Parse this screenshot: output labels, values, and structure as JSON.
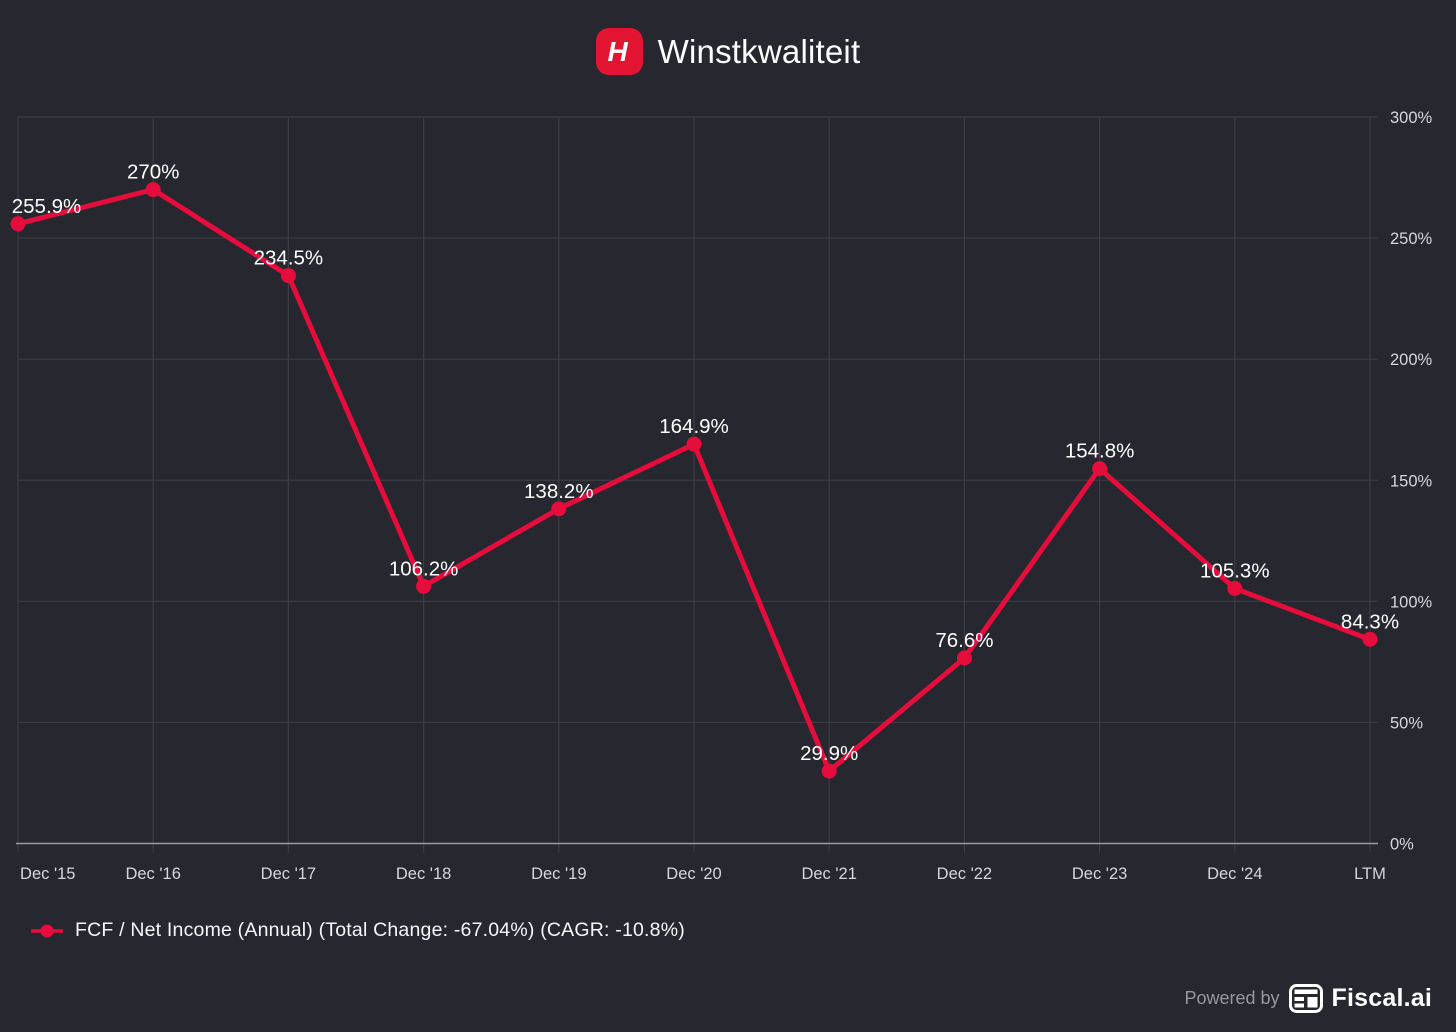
{
  "header": {
    "title": "Winstkwaliteit",
    "logo_letter": "H"
  },
  "chart_data": {
    "type": "line",
    "title": "Winstkwaliteit",
    "categories": [
      "Dec '15",
      "Dec '16",
      "Dec '17",
      "Dec '18",
      "Dec '19",
      "Dec '20",
      "Dec '21",
      "Dec '22",
      "Dec '23",
      "Dec '24",
      "LTM"
    ],
    "series": [
      {
        "name": "FCF / Net Income (Annual)",
        "values": [
          255.9,
          270,
          234.5,
          106.2,
          138.2,
          164.9,
          29.9,
          76.6,
          154.8,
          105.3,
          84.3
        ],
        "color": "#e60c3c"
      }
    ],
    "point_labels": [
      "255.9%",
      "270%",
      "234.5%",
      "106.2%",
      "138.2%",
      "164.9%",
      "29.9%",
      "76.6%",
      "154.8%",
      "105.3%",
      "84.3%"
    ],
    "total_change": "-67.04%",
    "cagr": "-10.8%",
    "ylim": [
      0,
      300
    ],
    "y_ticks": [
      "0%",
      "50%",
      "100%",
      "150%",
      "200%",
      "250%",
      "300%"
    ],
    "y_tick_values": [
      0,
      50,
      100,
      150,
      200,
      250,
      300
    ],
    "y_axis_side": "right",
    "x_axis_side": "bottom",
    "grid": true,
    "legend_position": "bottom-left"
  },
  "legend": {
    "label": "FCF / Net Income (Annual) (Total Change: -67.04%) (CAGR: -10.8%)"
  },
  "footer": {
    "powered_by": "Powered by",
    "brand": "Fiscal.ai"
  },
  "colors": {
    "background": "#27272f",
    "series_red": "#e60c3c",
    "logo_red": "#e31332",
    "grid_line": "#3c3c46",
    "axis_line": "#9a9aa2",
    "tick_label": "#d6d6db",
    "point_label": "#ffffff",
    "legend_text": "#f7f7f9",
    "powered_by_text": "#97979f"
  }
}
